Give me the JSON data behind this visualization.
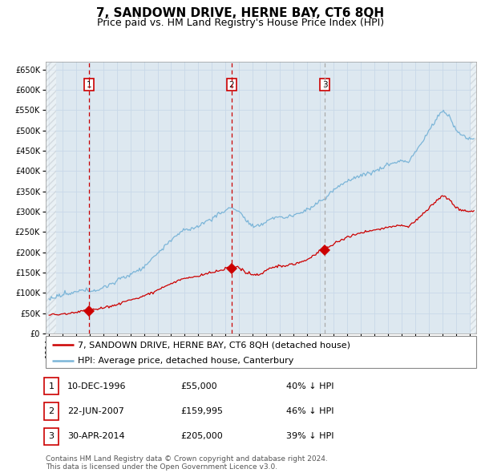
{
  "title": "7, SANDOWN DRIVE, HERNE BAY, CT6 8QH",
  "subtitle": "Price paid vs. HM Land Registry's House Price Index (HPI)",
  "footer": "Contains HM Land Registry data © Crown copyright and database right 2024.\nThis data is licensed under the Open Government Licence v3.0.",
  "legend_line1": "7, SANDOWN DRIVE, HERNE BAY, CT6 8QH (detached house)",
  "legend_line2": "HPI: Average price, detached house, Canterbury",
  "transactions": [
    {
      "num": 1,
      "date": "10-DEC-1996",
      "price": 55000,
      "note": "40% ↓ HPI",
      "year": 1996.94
    },
    {
      "num": 2,
      "date": "22-JUN-2007",
      "price": 159995,
      "note": "46% ↓ HPI",
      "year": 2007.47
    },
    {
      "num": 3,
      "date": "30-APR-2014",
      "price": 205000,
      "note": "39% ↓ HPI",
      "year": 2014.33
    }
  ],
  "ylim": [
    0,
    670000
  ],
  "ytick_step": 50000,
  "xmin": 1993.75,
  "xmax": 2025.5,
  "hpi_color": "#7bb5d8",
  "price_color": "#cc0000",
  "vline_color_12": "#cc0000",
  "vline_color_3": "#aaaaaa",
  "grid_color": "#c8d8e8",
  "plot_bg": "#dde8f0",
  "title_fontsize": 11,
  "subtitle_fontsize": 9,
  "tick_fontsize": 7,
  "legend_fontsize": 8,
  "table_fontsize": 8,
  "footer_fontsize": 6.5
}
